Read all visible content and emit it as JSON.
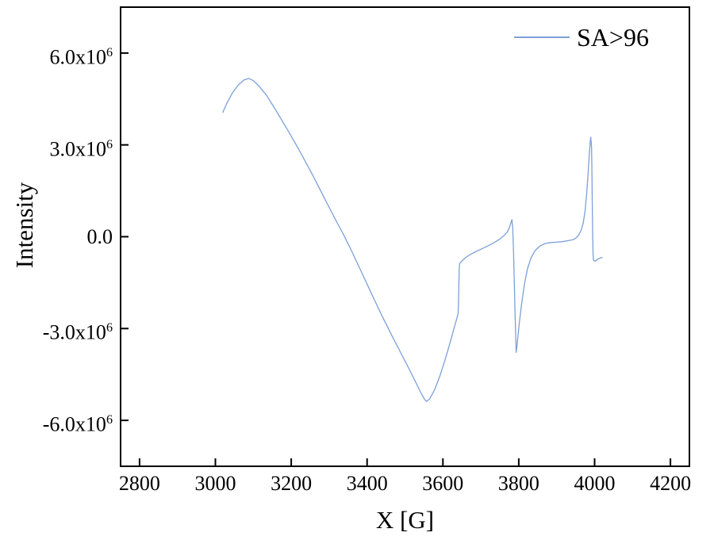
{
  "page": {
    "background": "#ffffff",
    "axis_color": "#000000"
  },
  "chart_data": {
    "type": "line",
    "title": "",
    "xlabel": "X [G]",
    "ylabel": "Intensity",
    "xlim": [
      2750,
      4250
    ],
    "ylim": [
      -7500000,
      7500000
    ],
    "grid": false,
    "tick_style": "inside",
    "legend": {
      "position": "top-right",
      "entries": [
        {
          "label": "SA>96",
          "color": "#7CA0D8"
        }
      ]
    },
    "x_ticks": {
      "values": [
        2800,
        3000,
        3200,
        3400,
        3600,
        3800,
        4000,
        4200
      ],
      "labels": [
        "2800",
        "3000",
        "3200",
        "3400",
        "3600",
        "3800",
        "4000",
        "4200"
      ]
    },
    "y_ticks": {
      "values": [
        6000000,
        3000000,
        0,
        -3000000,
        -6000000
      ],
      "labels": [
        "6.0x10^6",
        "3.0x10^6",
        "0.0",
        "-3.0x10^6",
        "-6.0x10^6"
      ]
    },
    "series": [
      {
        "name": "SA>96",
        "color": "#7CA0D8",
        "points": [
          [
            3019,
            4050000
          ],
          [
            3030,
            4350000
          ],
          [
            3045,
            4700000
          ],
          [
            3060,
            4950000
          ],
          [
            3075,
            5120000
          ],
          [
            3088,
            5170000
          ],
          [
            3100,
            5100000
          ],
          [
            3115,
            4920000
          ],
          [
            3135,
            4620000
          ],
          [
            3160,
            4120000
          ],
          [
            3190,
            3500000
          ],
          [
            3220,
            2850000
          ],
          [
            3255,
            2050000
          ],
          [
            3290,
            1200000
          ],
          [
            3320,
            480000
          ],
          [
            3340,
            20000
          ],
          [
            3365,
            -620000
          ],
          [
            3390,
            -1280000
          ],
          [
            3415,
            -1950000
          ],
          [
            3440,
            -2600000
          ],
          [
            3465,
            -3220000
          ],
          [
            3490,
            -3820000
          ],
          [
            3510,
            -4300000
          ],
          [
            3528,
            -4750000
          ],
          [
            3542,
            -5100000
          ],
          [
            3552,
            -5320000
          ],
          [
            3557,
            -5380000
          ],
          [
            3565,
            -5300000
          ],
          [
            3578,
            -5000000
          ],
          [
            3592,
            -4550000
          ],
          [
            3605,
            -4050000
          ],
          [
            3618,
            -3500000
          ],
          [
            3628,
            -3050000
          ],
          [
            3636,
            -2700000
          ],
          [
            3640,
            -2520000
          ],
          [
            3641,
            -2200000
          ],
          [
            3642,
            -1600000
          ],
          [
            3643,
            -1050000
          ],
          [
            3644,
            -880000
          ],
          [
            3648,
            -820000
          ],
          [
            3658,
            -700000
          ],
          [
            3672,
            -580000
          ],
          [
            3688,
            -480000
          ],
          [
            3705,
            -380000
          ],
          [
            3722,
            -280000
          ],
          [
            3738,
            -170000
          ],
          [
            3752,
            -60000
          ],
          [
            3762,
            50000
          ],
          [
            3770,
            160000
          ],
          [
            3776,
            320000
          ],
          [
            3780,
            480000
          ],
          [
            3782,
            560000
          ],
          [
            3784,
            300000
          ],
          [
            3786,
            -400000
          ],
          [
            3788,
            -1400000
          ],
          [
            3790,
            -2400000
          ],
          [
            3792,
            -3300000
          ],
          [
            3793,
            -3780000
          ],
          [
            3795,
            -3600000
          ],
          [
            3798,
            -3250000
          ],
          [
            3802,
            -2750000
          ],
          [
            3808,
            -2150000
          ],
          [
            3815,
            -1550000
          ],
          [
            3823,
            -1050000
          ],
          [
            3832,
            -700000
          ],
          [
            3843,
            -450000
          ],
          [
            3856,
            -300000
          ],
          [
            3870,
            -220000
          ],
          [
            3885,
            -190000
          ],
          [
            3900,
            -180000
          ],
          [
            3915,
            -160000
          ],
          [
            3930,
            -130000
          ],
          [
            3942,
            -100000
          ],
          [
            3950,
            -50000
          ],
          [
            3958,
            50000
          ],
          [
            3964,
            200000
          ],
          [
            3970,
            450000
          ],
          [
            3975,
            850000
          ],
          [
            3979,
            1400000
          ],
          [
            3983,
            2100000
          ],
          [
            3986,
            2700000
          ],
          [
            3989,
            3150000
          ],
          [
            3990,
            3250000
          ],
          [
            3992,
            2900000
          ],
          [
            3993,
            2000000
          ],
          [
            3994,
            1000000
          ],
          [
            3995,
            0
          ],
          [
            3996,
            -600000
          ],
          [
            3997,
            -760000
          ],
          [
            4000,
            -800000
          ],
          [
            4004,
            -780000
          ],
          [
            4010,
            -720000
          ],
          [
            4016,
            -690000
          ],
          [
            4021,
            -680000
          ]
        ]
      }
    ]
  }
}
